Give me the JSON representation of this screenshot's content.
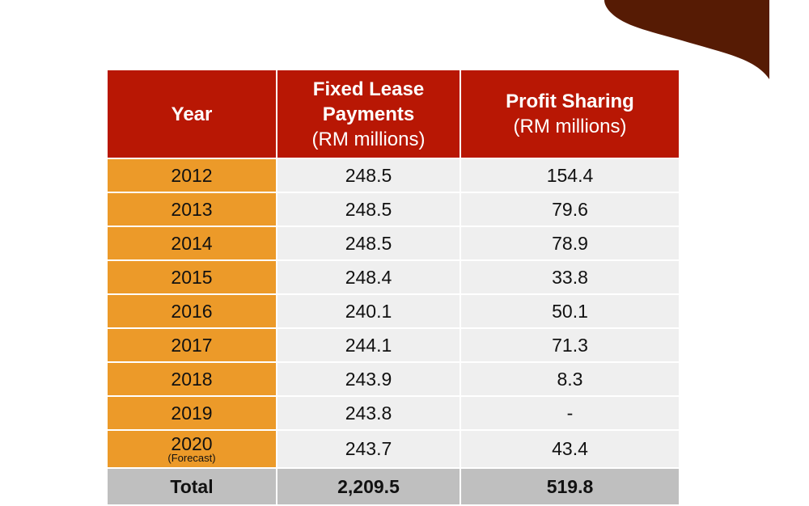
{
  "colors": {
    "header": "#b81704",
    "year_col": "#ec9a29",
    "cell": "#efefef",
    "total": "#bfbfbf",
    "decoration": "#561b04"
  },
  "table": {
    "headers": [
      {
        "title": "Year",
        "unit": ""
      },
      {
        "title": "Fixed Lease Payments",
        "unit": "(RM millions)"
      },
      {
        "title": "Profit Sharing",
        "unit": "(RM millions)"
      }
    ],
    "rows": [
      {
        "year": "2012",
        "fixed": "248.5",
        "profit": "154.4"
      },
      {
        "year": "2013",
        "fixed": "248.5",
        "profit": "79.6"
      },
      {
        "year": "2014",
        "fixed": "248.5",
        "profit": "78.9"
      },
      {
        "year": "2015",
        "fixed": "248.4",
        "profit": "33.8"
      },
      {
        "year": "2016",
        "fixed": "240.1",
        "profit": "50.1"
      },
      {
        "year": "2017",
        "fixed": "244.1",
        "profit": "71.3"
      },
      {
        "year": "2018",
        "fixed": "243.9",
        "profit": "8.3"
      },
      {
        "year": "2019",
        "fixed": "243.8",
        "profit": "-"
      },
      {
        "year": "2020",
        "note": "(Forecast)",
        "fixed": "243.7",
        "profit": "43.4"
      }
    ],
    "total": {
      "label": "Total",
      "fixed": "2,209.5",
      "profit": "519.8"
    }
  }
}
